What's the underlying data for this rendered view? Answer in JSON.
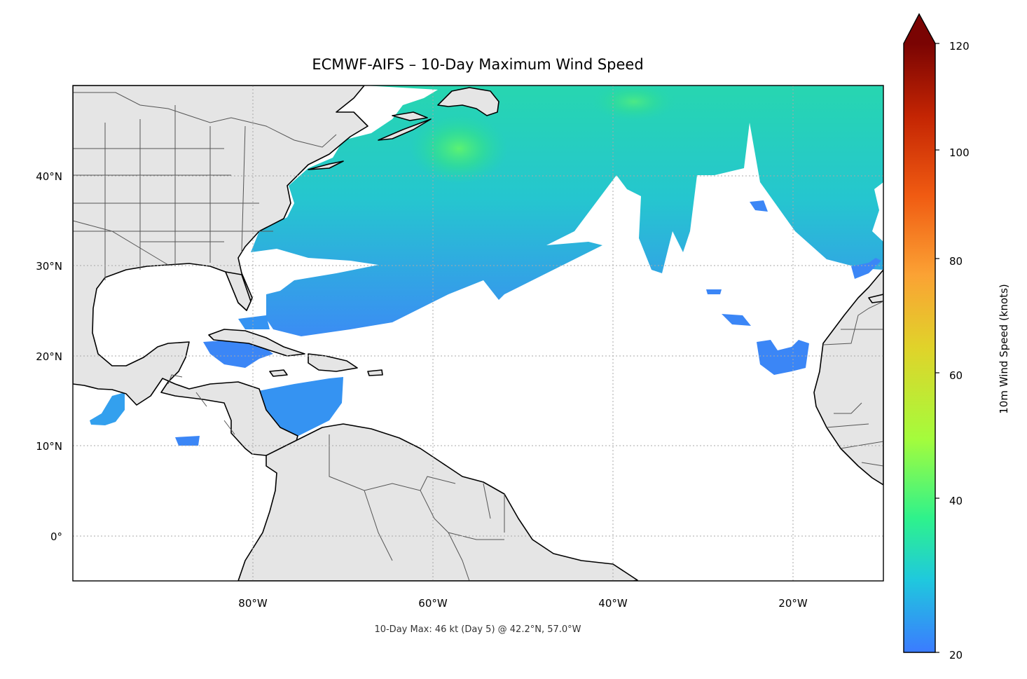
{
  "title": "ECMWF-AIFS – 10-Day Maximum Wind Speed",
  "footer": "10-Day Max: 46 kt (Day 5) @ 42.2°N, 57.0°W",
  "map": {
    "lon_range": [
      -100,
      -10
    ],
    "lat_range": [
      -5,
      50
    ],
    "lon_ticks": [
      "80°W",
      "60°W",
      "40°W",
      "20°W"
    ],
    "lat_ticks": [
      "40°N",
      "30°N",
      "20°N",
      "10°N",
      "0°"
    ],
    "gridlines": true,
    "land_color": "#e5e5e5",
    "ocean_color": "#ffffff",
    "max_point": {
      "lat": 42.2,
      "lon": -57.0,
      "value_kt": 46,
      "day": 5
    }
  },
  "colorbar": {
    "label": "10m Wind Speed (knots)",
    "ticks": [
      "20",
      "40",
      "60",
      "80",
      "100",
      "120"
    ],
    "min": 20,
    "max": 120,
    "extend": "max",
    "colormap": [
      "#3b7bff",
      "#1fc9dd",
      "#2ef28c",
      "#a4fc3c",
      "#e0d32a",
      "#fba234",
      "#f05b12",
      "#c42503",
      "#7a0403"
    ]
  }
}
